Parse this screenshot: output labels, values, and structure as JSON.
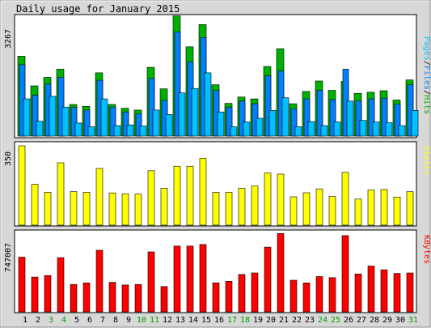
{
  "chart_data": {
    "type": "bar",
    "title": "Daily usage for January 2015",
    "categories": [
      "1",
      "2",
      "3",
      "4",
      "5",
      "6",
      "7",
      "8",
      "9",
      "10",
      "11",
      "12",
      "13",
      "14",
      "15",
      "16",
      "17",
      "18",
      "19",
      "20",
      "21",
      "22",
      "23",
      "24",
      "25",
      "26",
      "27",
      "28",
      "29",
      "30",
      "31"
    ],
    "weekend_days": [
      "3",
      "4",
      "10",
      "11",
      "17",
      "18",
      "24",
      "25",
      "31"
    ],
    "colors": {
      "hits": "#00b000",
      "files": "#0080ff",
      "pages": "#00c0ff",
      "visits": "#ffff00",
      "kbytes": "#ff0000",
      "weekend_label": "#00a000",
      "weekday_label": "#000000",
      "background": "#d8d8d8"
    },
    "panels": [
      {
        "id": "hits",
        "scale_label": "3267",
        "ylim": [
          0,
          3267
        ],
        "legend": [
          "Pages",
          "/",
          "Files",
          "/",
          "Hits"
        ],
        "legend_colors": [
          "#00c0ff",
          "#000000",
          "#0080ff",
          "#000000",
          "#00b000"
        ],
        "series": [
          {
            "name": "Hits",
            "values": [
              2150,
              1350,
              1580,
              1800,
              850,
              800,
              1700,
              850,
              750,
              700,
              1850,
              1270,
              3230,
              2400,
              3000,
              1380,
              880,
              1050,
              1000,
              1870,
              2350,
              870,
              1200,
              1480,
              1230,
              1470,
              1150,
              1180,
              1220,
              970,
              1510
            ]
          },
          {
            "name": "Files",
            "values": [
              1920,
              1100,
              1400,
              1580,
              770,
              700,
              1500,
              780,
              650,
              600,
              1550,
              960,
              2800,
              2000,
              2650,
              1230,
              780,
              940,
              870,
              1620,
              1750,
              730,
              1000,
              1230,
              980,
              1800,
              950,
              1000,
              1020,
              860,
              1380
            ]
          },
          {
            "name": "Pages",
            "values": [
              1000,
              400,
              1070,
              780,
              350,
              250,
              1000,
              280,
              300,
              270,
              700,
              580,
              1160,
              1280,
              1700,
              650,
              250,
              380,
              480,
              690,
              1030,
              250,
              390,
              280,
              380,
              940,
              420,
              380,
              360,
              280,
              690
            ]
          }
        ]
      },
      {
        "id": "visits",
        "scale_label": "350",
        "ylim": [
          0,
          350
        ],
        "legend": [
          "Visits"
        ],
        "legend_colors": [
          "#ffff00"
        ],
        "series": [
          {
            "name": "Visits",
            "values": [
              350,
              180,
              145,
              275,
              148,
              145,
              250,
              142,
              138,
              137,
              240,
              163,
              260,
              260,
              295,
              145,
              145,
              163,
              173,
              230,
              225,
              125,
              143,
              160,
              126,
              233,
              115,
              155,
              157,
              124,
              148
            ]
          }
        ]
      },
      {
        "id": "kbytes",
        "scale_label": "747007",
        "ylim": [
          0,
          747007
        ],
        "legend": [
          "KBytes"
        ],
        "legend_colors": [
          "#ff0000"
        ],
        "series": [
          {
            "name": "KBytes",
            "values": [
              520000,
              330000,
              345000,
              515000,
              260000,
              275000,
              585000,
              280000,
              255000,
              260000,
              570000,
              240000,
              625000,
              625000,
              640000,
              275000,
              290000,
              355000,
              370000,
              615000,
              745000,
              300000,
              275000,
              335000,
              325000,
              725000,
              360000,
              435000,
              400000,
              365000,
              370000
            ]
          }
        ]
      }
    ]
  }
}
